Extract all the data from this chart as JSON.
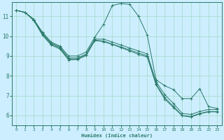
{
  "xlabel": "Humidex (Indice chaleur)",
  "bg_color": "#cceeff",
  "grid_color": "#aaddcc",
  "line_color": "#2a7a6a",
  "spine_color": "#2a7a6a",
  "xlim": [
    -0.5,
    23.5
  ],
  "ylim": [
    5.5,
    11.7
  ],
  "xticks": [
    0,
    1,
    2,
    3,
    4,
    5,
    6,
    7,
    8,
    9,
    10,
    11,
    12,
    13,
    14,
    15,
    16,
    17,
    18,
    19,
    20,
    21,
    22,
    23
  ],
  "yticks": [
    6,
    7,
    8,
    9,
    10,
    11
  ],
  "curves": [
    {
      "x": [
        0,
        1,
        2,
        3,
        4,
        5,
        6,
        7,
        8,
        9,
        10,
        11,
        12,
        13,
        14,
        15,
        16,
        17,
        18,
        19,
        20,
        21,
        22,
        23
      ],
      "y": [
        11.3,
        11.2,
        10.85,
        10.2,
        9.7,
        9.5,
        9.0,
        9.0,
        9.2,
        9.95,
        10.6,
        11.55,
        11.65,
        11.6,
        11.0,
        10.05,
        7.8,
        7.5,
        7.3,
        6.85,
        6.85,
        7.35,
        6.45,
        6.35
      ]
    },
    {
      "x": [
        0,
        1,
        2,
        3,
        4,
        5,
        6,
        7,
        8,
        9,
        10,
        11,
        12,
        13,
        14,
        15,
        16,
        17,
        18,
        19,
        20,
        21,
        22,
        23
      ],
      "y": [
        11.3,
        11.2,
        10.85,
        10.15,
        9.65,
        9.45,
        8.9,
        8.9,
        9.1,
        9.85,
        9.85,
        9.7,
        9.55,
        9.4,
        9.25,
        9.1,
        7.7,
        7.05,
        6.6,
        6.1,
        6.05,
        6.2,
        6.3,
        6.3
      ]
    },
    {
      "x": [
        0,
        1,
        2,
        3,
        4,
        5,
        6,
        7,
        8,
        9,
        10,
        11,
        12,
        13,
        14,
        15,
        16,
        17,
        18,
        19,
        20,
        21,
        22,
        23
      ],
      "y": [
        11.3,
        11.2,
        10.8,
        10.1,
        9.6,
        9.4,
        8.85,
        8.85,
        9.05,
        9.8,
        9.75,
        9.6,
        9.45,
        9.3,
        9.15,
        9.0,
        7.6,
        6.9,
        6.45,
        6.0,
        5.95,
        6.1,
        6.2,
        6.2
      ]
    },
    {
      "x": [
        0,
        1,
        2,
        3,
        4,
        5,
        6,
        7,
        8,
        9,
        10,
        11,
        12,
        13,
        14,
        15,
        16,
        17,
        18,
        19,
        20,
        21,
        22,
        23
      ],
      "y": [
        11.3,
        11.2,
        10.8,
        10.05,
        9.55,
        9.35,
        8.8,
        8.82,
        9.02,
        9.78,
        9.72,
        9.58,
        9.42,
        9.25,
        9.08,
        8.95,
        7.55,
        6.82,
        6.4,
        5.98,
        5.92,
        6.08,
        6.18,
        6.18
      ]
    }
  ]
}
